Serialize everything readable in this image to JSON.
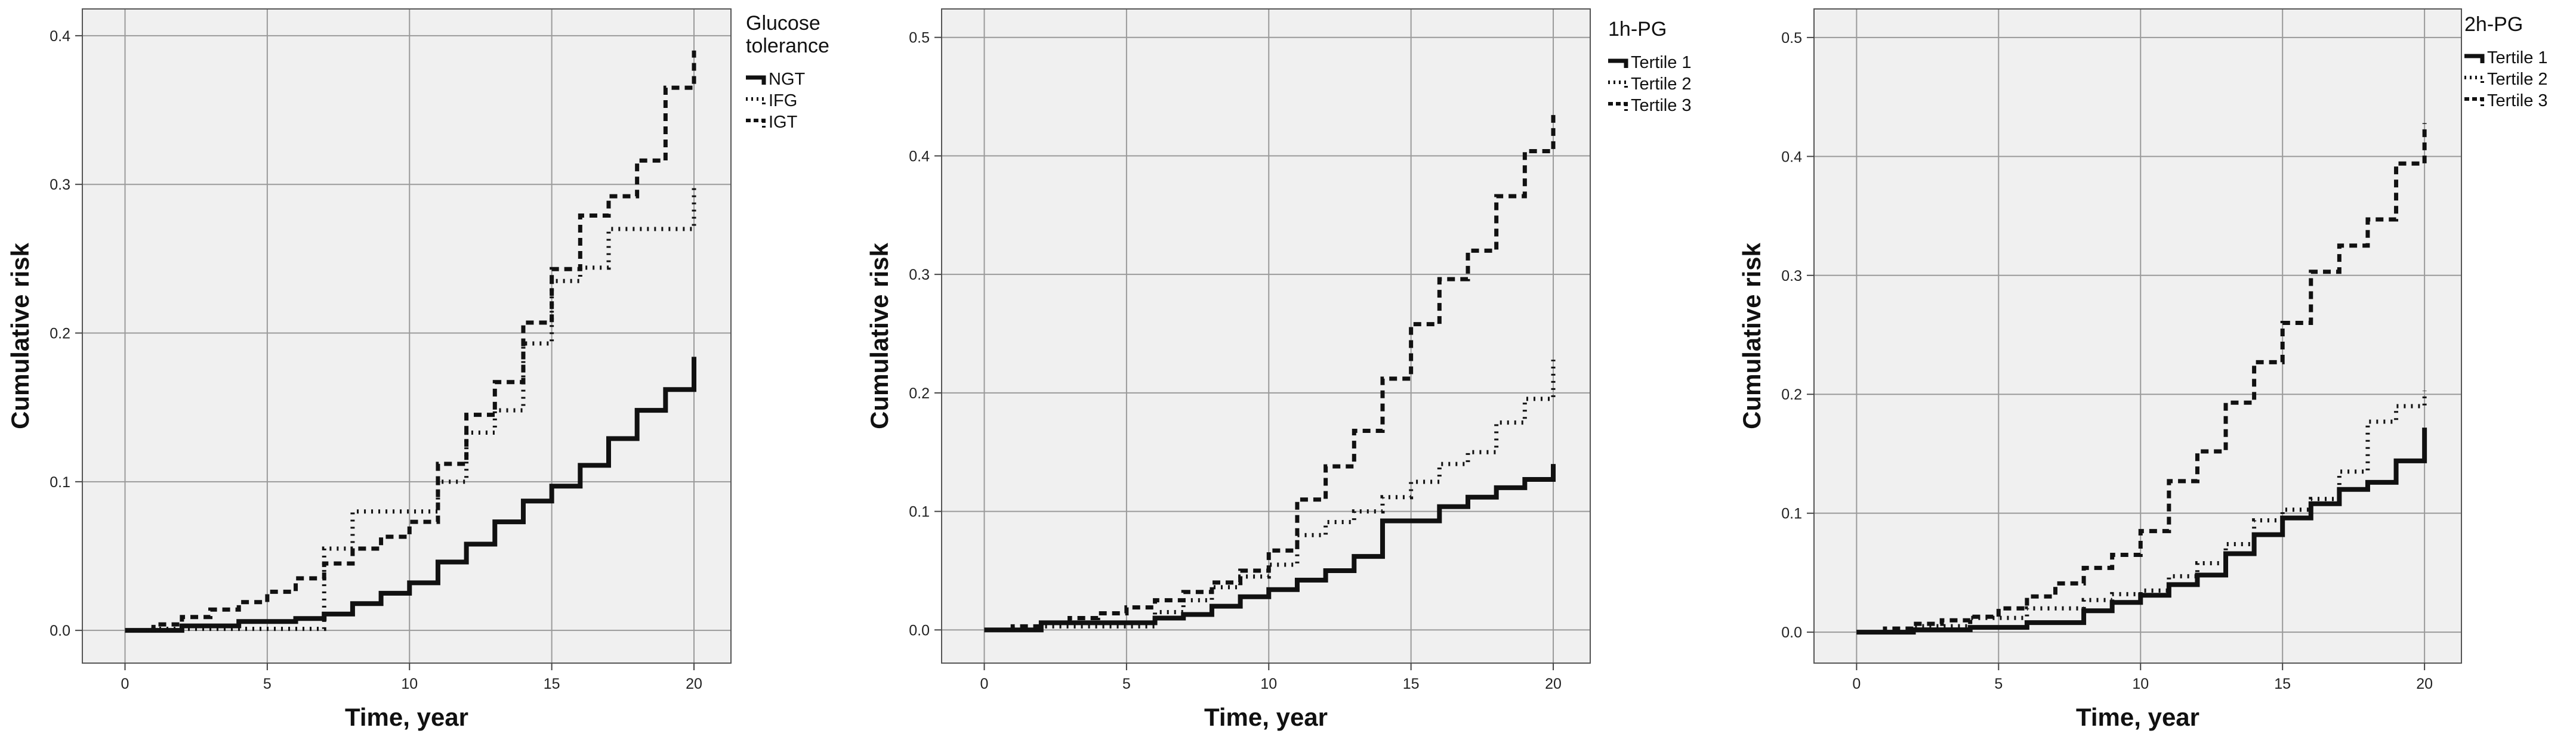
{
  "chart_data": [
    {
      "type": "line",
      "step": true,
      "xlabel": "Time, year",
      "ylabel": "Cumulative risk",
      "xlim": [
        -1.5,
        21.3
      ],
      "ylim": [
        -0.022,
        0.418
      ],
      "xticks": [
        0,
        5,
        10,
        15,
        20
      ],
      "yticks": [
        0.0,
        0.1,
        0.2,
        0.3,
        0.4
      ],
      "yticklabels": [
        "0.0",
        "0.1",
        "0.2",
        "0.3",
        "0.4"
      ],
      "grid": true,
      "legend": {
        "title_lines": [
          "Glucose",
          "tolerance"
        ],
        "placement": "right"
      },
      "series": [
        {
          "name": "NGT",
          "style": "solid",
          "x": [
            0,
            2,
            4,
            6,
            7,
            8,
            9,
            10,
            11,
            12,
            13,
            14,
            15,
            16,
            17,
            18,
            19,
            20,
            20
          ],
          "y": [
            0,
            0.003,
            0.006,
            0.008,
            0.011,
            0.018,
            0.025,
            0.032,
            0.046,
            0.058,
            0.073,
            0.087,
            0.097,
            0.111,
            0.129,
            0.148,
            0.162,
            0.162,
            0.184
          ]
        },
        {
          "name": "IFG",
          "style": "dotted",
          "x": [
            0,
            1,
            2,
            3,
            4,
            5,
            6,
            7,
            8,
            9,
            10,
            11,
            12,
            13,
            14,
            15,
            16,
            17,
            18,
            19,
            20,
            20
          ],
          "y": [
            0,
            0.001,
            0.001,
            0.001,
            0.001,
            0.001,
            0.001,
            0.055,
            0.08,
            0.08,
            0.08,
            0.1,
            0.133,
            0.148,
            0.193,
            0.235,
            0.244,
            0.27,
            0.27,
            0.27,
            0.27,
            0.298
          ]
        },
        {
          "name": "IGT",
          "style": "dashed",
          "x": [
            0,
            1,
            2,
            3,
            4,
            5,
            6,
            7,
            8,
            9,
            10,
            11,
            12,
            13,
            14,
            15,
            16,
            17,
            18,
            19,
            20,
            20
          ],
          "y": [
            0,
            0.004,
            0.009,
            0.014,
            0.019,
            0.026,
            0.035,
            0.045,
            0.055,
            0.063,
            0.073,
            0.112,
            0.145,
            0.167,
            0.207,
            0.243,
            0.279,
            0.292,
            0.316,
            0.365,
            0.365,
            0.39
          ]
        }
      ]
    },
    {
      "type": "line",
      "step": true,
      "xlabel": "Time, year",
      "ylabel": "Cumulative risk",
      "xlim": [
        -1.5,
        21.3
      ],
      "ylim": [
        -0.028,
        0.524
      ],
      "xticks": [
        0,
        5,
        10,
        15,
        20
      ],
      "yticks": [
        0.0,
        0.1,
        0.2,
        0.3,
        0.4,
        0.5
      ],
      "yticklabels": [
        "0.0",
        "0.1",
        "0.2",
        "0.3",
        "0.4",
        "0.5"
      ],
      "grid": true,
      "legend": {
        "title_lines": [
          "1h-PG"
        ],
        "placement": "right"
      },
      "series": [
        {
          "name": "Tertile 1",
          "style": "solid",
          "x": [
            0,
            2,
            4,
            6,
            7,
            8,
            9,
            10,
            11,
            12,
            13,
            14,
            15,
            16,
            17,
            18,
            19,
            20,
            20
          ],
          "y": [
            0,
            0.006,
            0.006,
            0.01,
            0.013,
            0.02,
            0.028,
            0.034,
            0.042,
            0.05,
            0.062,
            0.092,
            0.092,
            0.104,
            0.112,
            0.12,
            0.127,
            0.13,
            0.14
          ]
        },
        {
          "name": "Tertile 2",
          "style": "dotted",
          "x": [
            0,
            2,
            3,
            4,
            5,
            6,
            7,
            8,
            9,
            10,
            11,
            12,
            13,
            14,
            15,
            16,
            17,
            18,
            19,
            20,
            20
          ],
          "y": [
            0,
            0.003,
            0.003,
            0.003,
            0.003,
            0.015,
            0.025,
            0.036,
            0.045,
            0.055,
            0.08,
            0.091,
            0.1,
            0.112,
            0.125,
            0.14,
            0.15,
            0.175,
            0.195,
            0.207,
            0.228
          ]
        },
        {
          "name": "Tertile 3",
          "style": "dashed",
          "x": [
            0,
            1,
            2,
            3,
            4,
            5,
            6,
            7,
            8,
            9,
            10,
            11,
            12,
            13,
            14,
            15,
            16,
            17,
            18,
            19,
            20,
            20
          ],
          "y": [
            0,
            0.003,
            0.006,
            0.01,
            0.014,
            0.019,
            0.025,
            0.032,
            0.04,
            0.05,
            0.067,
            0.11,
            0.138,
            0.168,
            0.212,
            0.258,
            0.296,
            0.32,
            0.366,
            0.404,
            0.404,
            0.438
          ]
        }
      ]
    },
    {
      "type": "line",
      "step": true,
      "xlabel": "Time, year",
      "ylabel": "Cumulative risk",
      "xlim": [
        -1.5,
        21.3
      ],
      "ylim": [
        -0.026,
        0.524
      ],
      "xticks": [
        0,
        5,
        10,
        15,
        20
      ],
      "yticks": [
        0.0,
        0.1,
        0.2,
        0.3,
        0.4,
        0.5
      ],
      "yticklabels": [
        "0.0",
        "0.1",
        "0.2",
        "0.3",
        "0.4",
        "0.5"
      ],
      "grid": true,
      "legend": {
        "title_lines": [
          "2h-PG"
        ],
        "placement": "right"
      },
      "series": [
        {
          "name": "Tertile 1",
          "style": "solid",
          "x": [
            0,
            2,
            4,
            6,
            8,
            9,
            10,
            11,
            12,
            13,
            14,
            15,
            16,
            17,
            18,
            19,
            20,
            20
          ],
          "y": [
            0,
            0.002,
            0.004,
            0.008,
            0.018,
            0.025,
            0.031,
            0.04,
            0.048,
            0.066,
            0.082,
            0.096,
            0.108,
            0.12,
            0.126,
            0.144,
            0.144,
            0.172
          ]
        },
        {
          "name": "Tertile 2",
          "style": "dotted",
          "x": [
            0,
            2,
            4,
            6,
            8,
            9,
            10,
            11,
            12,
            13,
            14,
            15,
            16,
            17,
            18,
            19,
            20,
            20
          ],
          "y": [
            0,
            0.005,
            0.012,
            0.02,
            0.027,
            0.032,
            0.035,
            0.047,
            0.058,
            0.074,
            0.094,
            0.103,
            0.112,
            0.135,
            0.177,
            0.19,
            0.19,
            0.203
          ]
        },
        {
          "name": "Tertile 3",
          "style": "dashed",
          "x": [
            0,
            1,
            2,
            3,
            4,
            5,
            6,
            7,
            8,
            9,
            10,
            11,
            12,
            13,
            14,
            15,
            16,
            17,
            18,
            19,
            20,
            20
          ],
          "y": [
            0,
            0.003,
            0.007,
            0.01,
            0.013,
            0.02,
            0.03,
            0.041,
            0.054,
            0.065,
            0.085,
            0.127,
            0.152,
            0.193,
            0.227,
            0.26,
            0.303,
            0.325,
            0.347,
            0.394,
            0.394,
            0.428
          ]
        }
      ]
    }
  ]
}
